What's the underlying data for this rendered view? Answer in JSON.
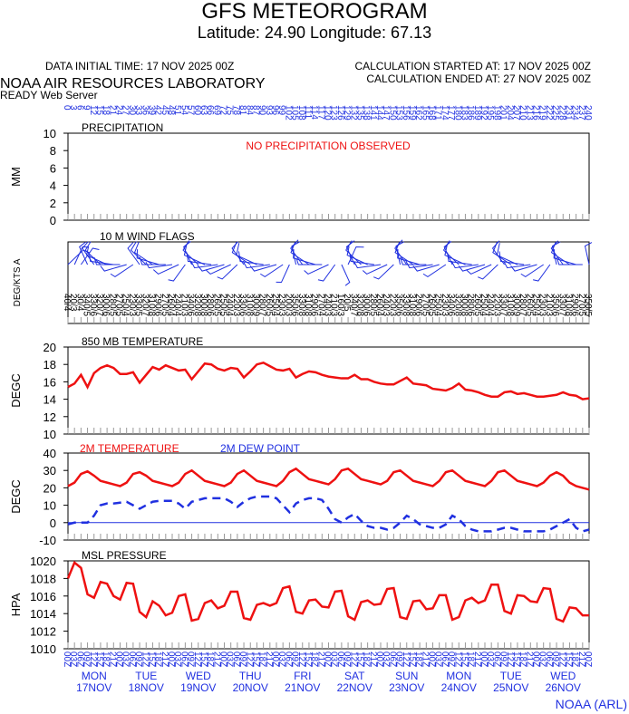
{
  "header": {
    "title": "GFS METEOROGRAM",
    "subtitle": "Latitude: 24.90 Longitude:  67.13",
    "data_initial": "DATA INITIAL TIME: 17 NOV 2025 00Z",
    "calc_started": "CALCULATION STARTED AT: 17 NOV 2025 00Z",
    "calc_ended": "CALCULATION ENDED AT: 27 NOV 2025 00Z",
    "lab": "NOAA AIR RESOURCES LABORATORY",
    "server": "READY Web Server",
    "footer": "NOAA (ARL)"
  },
  "time": {
    "xlim": [
      0,
      240
    ],
    "x": [
      0,
      3,
      6,
      9,
      12,
      15,
      18,
      21,
      24,
      27,
      30,
      33,
      36,
      39,
      42,
      45,
      48,
      51,
      54,
      57,
      60,
      63,
      66,
      69,
      72,
      75,
      78,
      81,
      84,
      87,
      90,
      93,
      96,
      99,
      102,
      105,
      108,
      111,
      114,
      117,
      120,
      123,
      126,
      129,
      132,
      135,
      138,
      141,
      144,
      147,
      150,
      153,
      156,
      159,
      162,
      165,
      168,
      171,
      174,
      177,
      180,
      183,
      186,
      189,
      192,
      195,
      198,
      201,
      204,
      207,
      210,
      213,
      216,
      219,
      222,
      225,
      228,
      231,
      234,
      237,
      240
    ],
    "utc_labels": [
      "00Z",
      "03Z",
      "06Z",
      "09Z",
      "12Z",
      "15Z",
      "18Z",
      "21Z"
    ],
    "days": [
      {
        "hour": 12,
        "day": "MON",
        "date": "17NOV"
      },
      {
        "hour": 36,
        "day": "TUE",
        "date": "18NOV"
      },
      {
        "hour": 60,
        "day": "WED",
        "date": "19NOV"
      },
      {
        "hour": 84,
        "day": "THU",
        "date": "20NOV"
      },
      {
        "hour": 108,
        "day": "FRI",
        "date": "21NOV"
      },
      {
        "hour": 132,
        "day": "SAT",
        "date": "22NOV"
      },
      {
        "hour": 156,
        "day": "SUN",
        "date": "23NOV"
      },
      {
        "hour": 180,
        "day": "MON",
        "date": "24NOV"
      },
      {
        "hour": 204,
        "day": "TUE",
        "date": "25NOV"
      },
      {
        "hour": 228,
        "day": "WED",
        "date": "26NOV"
      }
    ]
  },
  "chart_data": [
    {
      "type": "line",
      "title": "PRECIPITATION",
      "annotation": "NO PRECIPITATION OBSERVED",
      "ylabel": "MM",
      "ylim": [
        0,
        10
      ],
      "yticks": [
        0,
        2,
        4,
        6,
        8,
        10
      ],
      "series": []
    },
    {
      "type": "wind",
      "title": "10 M  WIND FLAGS",
      "ylabel": "DEG/KTS  A",
      "color": "#2030e0",
      "direction": [
        40,
        20,
        30,
        340,
        330,
        320,
        300,
        280,
        270,
        250,
        230,
        330,
        320,
        310,
        290,
        270,
        260,
        240,
        210,
        340,
        320,
        300,
        280,
        260,
        250,
        240,
        220,
        330,
        310,
        300,
        280,
        260,
        250,
        230,
        200,
        350,
        330,
        310,
        290,
        270,
        240,
        210,
        160,
        20,
        340,
        320,
        300,
        280,
        260,
        240,
        220,
        350,
        330,
        310,
        290,
        270,
        260,
        250,
        230,
        340,
        320,
        300,
        280,
        260,
        250,
        240,
        220,
        330,
        310,
        300,
        280,
        260,
        250,
        230,
        210,
        350,
        330,
        310,
        290,
        270,
        350
      ],
      "speed": [
        4,
        3,
        4,
        5,
        6,
        7,
        6,
        5,
        5,
        4,
        3,
        5,
        7,
        8,
        6,
        5,
        4,
        4,
        3,
        6,
        8,
        8,
        6,
        5,
        5,
        4,
        3,
        6,
        8,
        9,
        7,
        5,
        4,
        3,
        3,
        6,
        8,
        8,
        6,
        4,
        3,
        3,
        3,
        5,
        7,
        8,
        6,
        5,
        4,
        3,
        3,
        6,
        8,
        8,
        6,
        5,
        5,
        4,
        3,
        6,
        8,
        8,
        6,
        5,
        4,
        4,
        3,
        7,
        8,
        9,
        7,
        5,
        4,
        3,
        3,
        6,
        7,
        8,
        6,
        5,
        5
      ],
      "labels": [
        "40/4",
        "20/3",
        "30/4",
        "340/5",
        "330/6",
        "320/7",
        "300/6",
        "280/5",
        "270/5",
        "250/4",
        "230/3",
        "330/5",
        "320/7",
        "310/8",
        "290/6",
        "270/5",
        "260/4",
        "240/4",
        "210/3",
        "340/6",
        "320/8",
        "300/8",
        "280/6",
        "260/5",
        "250/5",
        "240/4",
        "220/3",
        "330/6",
        "310/8",
        "300/9",
        "280/7",
        "260/5",
        "250/4",
        "230/3",
        "200/3",
        "350/6",
        "330/8",
        "310/8",
        "290/6",
        "270/4",
        "240/3",
        "210/3",
        "160/3",
        "20/5",
        "340/7",
        "320/8",
        "300/6",
        "280/5",
        "260/4",
        "240/3",
        "220/3",
        "350/6",
        "330/8",
        "310/8",
        "290/6",
        "270/5",
        "260/5",
        "250/4",
        "230/3",
        "340/6",
        "320/8",
        "300/8",
        "280/6",
        "260/5",
        "250/4",
        "240/4",
        "220/3",
        "330/7",
        "310/8",
        "300/9",
        "280/7",
        "260/5",
        "250/4",
        "230/3",
        "210/3",
        "350/6",
        "330/7",
        "310/8",
        "290/6",
        "270/5",
        "350/5"
      ]
    },
    {
      "type": "line",
      "title": "850 MB  TEMPERATURE",
      "ylabel": "DEGC",
      "ylim": [
        10,
        20
      ],
      "yticks": [
        10,
        12,
        14,
        16,
        18,
        20
      ],
      "series": [
        {
          "color": "#ee1111",
          "values": [
            15.4,
            15.8,
            16.8,
            15.4,
            17.0,
            17.6,
            17.9,
            17.6,
            16.9,
            16.9,
            17.1,
            15.9,
            16.8,
            17.7,
            17.4,
            17.9,
            17.6,
            17.3,
            17.4,
            16.3,
            17.2,
            18.1,
            18.0,
            17.5,
            17.3,
            17.6,
            17.5,
            16.5,
            17.2,
            18.0,
            18.2,
            17.8,
            17.4,
            17.3,
            17.5,
            16.5,
            16.9,
            17.2,
            17.1,
            16.8,
            16.6,
            16.5,
            16.4,
            16.4,
            16.8,
            16.3,
            16.3,
            16.0,
            15.8,
            15.7,
            15.7,
            16.1,
            16.5,
            15.8,
            15.7,
            15.6,
            15.2,
            15.1,
            15.0,
            15.3,
            15.8,
            15.1,
            15.0,
            14.8,
            14.5,
            14.3,
            14.3,
            14.8,
            14.9,
            14.6,
            14.7,
            14.5,
            14.3,
            14.3,
            14.4,
            14.5,
            14.8,
            14.5,
            14.4,
            14.0,
            14.1
          ]
        }
      ]
    },
    {
      "type": "line",
      "ylabel": "DEGC",
      "ylim": [
        -10,
        40
      ],
      "yticks": [
        -10,
        0,
        10,
        20,
        30,
        40
      ],
      "hline": 0,
      "hline_color": "#2030e0",
      "series": [
        {
          "name": "2M TEMPERATURE",
          "color": "#ee1111",
          "values": [
            21,
            23,
            28,
            29.5,
            27,
            24,
            23,
            22,
            21,
            23,
            28,
            29,
            27,
            24,
            23,
            22,
            21,
            23,
            28,
            30,
            27,
            24,
            23,
            22,
            21,
            23,
            28,
            30,
            27,
            24,
            23,
            22,
            21,
            24,
            29,
            31,
            28,
            25,
            24,
            23,
            22,
            25,
            30,
            31,
            28,
            25,
            24,
            23,
            22,
            24,
            29,
            30,
            27,
            24,
            23,
            22,
            21,
            24,
            29,
            30,
            27,
            24,
            23,
            22,
            21,
            24,
            29,
            30,
            27,
            24,
            23,
            22,
            21,
            23,
            27,
            29,
            27,
            23,
            21,
            20,
            19
          ]
        },
        {
          "name": "2M  DEW POINT",
          "color": "#2030e0",
          "dash": true,
          "values": [
            -1,
            0,
            0,
            0,
            4,
            10,
            11,
            11,
            11.5,
            12,
            10,
            8,
            10,
            12,
            12.5,
            12.5,
            12.5,
            11,
            8,
            12,
            13,
            14,
            14,
            14,
            14,
            12,
            9,
            12,
            14,
            15,
            15,
            15,
            14,
            10,
            6,
            11,
            13,
            14,
            14,
            13,
            8,
            2,
            0,
            3,
            5,
            1,
            -2,
            -3,
            -3,
            -4,
            -3,
            0,
            4,
            2,
            -1,
            -2,
            -3,
            -3,
            -1,
            4,
            2,
            -2,
            -4,
            -5,
            -5,
            -5,
            -4,
            -3,
            -3,
            -4,
            -5,
            -5,
            -5,
            -5,
            -4,
            -2,
            0,
            2,
            -3,
            -5,
            -4
          ]
        }
      ]
    },
    {
      "type": "line",
      "title": "MSL PRESSURE",
      "ylabel": "HPA",
      "ylim": [
        1010,
        1020
      ],
      "yticks": [
        1010,
        1012,
        1014,
        1016,
        1018,
        1020
      ],
      "series": [
        {
          "color": "#ee1111",
          "values": [
            1018,
            1019.8,
            1019.2,
            1016.2,
            1015.8,
            1017.6,
            1017.4,
            1016.0,
            1015.6,
            1017.5,
            1017.4,
            1014.2,
            1013.6,
            1015.4,
            1014.9,
            1013.8,
            1014.1,
            1016.0,
            1016.2,
            1013.2,
            1013.4,
            1015.2,
            1015.5,
            1014.6,
            1014.9,
            1016.5,
            1016.5,
            1013.5,
            1013.3,
            1015.0,
            1015.2,
            1014.9,
            1015.2,
            1016.9,
            1017.1,
            1014.2,
            1014.0,
            1015.5,
            1015.6,
            1014.8,
            1014.7,
            1016.5,
            1016.6,
            1013.7,
            1013.3,
            1015.3,
            1015.5,
            1015.0,
            1015.1,
            1016.8,
            1016.9,
            1013.6,
            1013.4,
            1015.4,
            1015.5,
            1014.5,
            1014.6,
            1016.1,
            1016.1,
            1013.3,
            1013.6,
            1015.5,
            1015.8,
            1015.2,
            1015.5,
            1017.3,
            1017.3,
            1014.3,
            1014.0,
            1016.1,
            1016.0,
            1015.4,
            1015.3,
            1016.9,
            1016.8,
            1013.4,
            1013.1,
            1014.7,
            1014.6,
            1013.8,
            1013.8
          ]
        }
      ]
    }
  ]
}
